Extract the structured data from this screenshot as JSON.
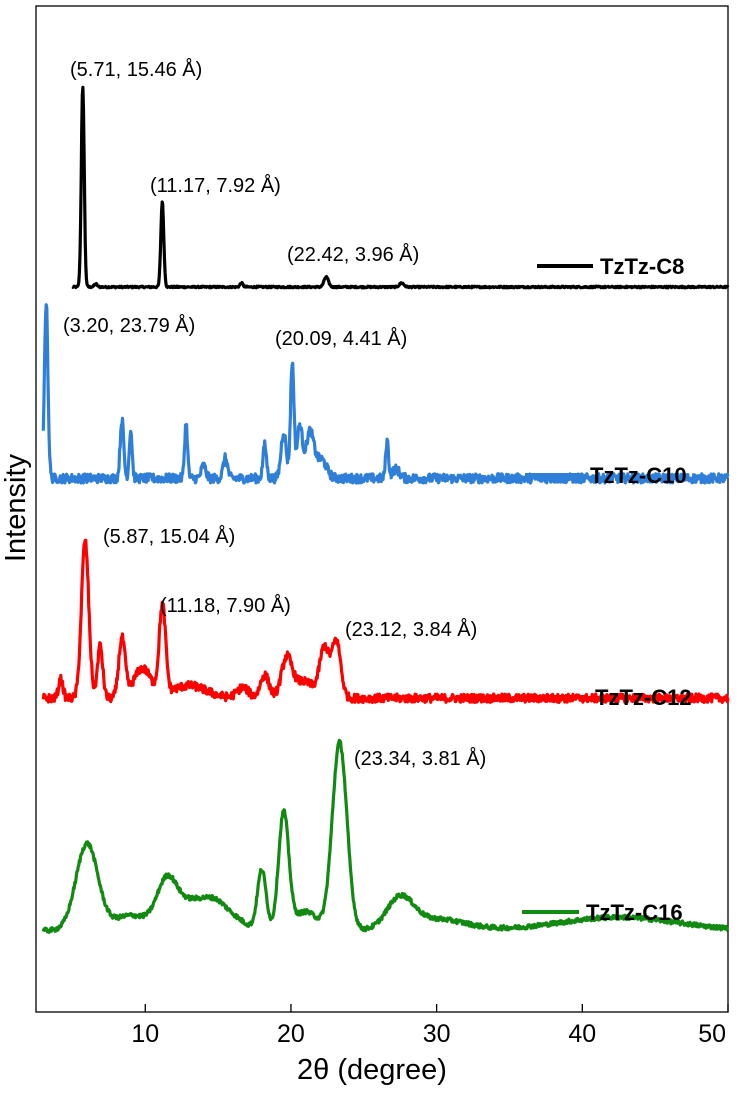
{
  "chart_data": {
    "type": "line",
    "title": "",
    "xlabel": "2θ (degree)",
    "ylabel": "Intensity",
    "xlim": [
      2.5,
      50
    ],
    "xticks": [
      10,
      20,
      30,
      40,
      50
    ],
    "y_ticks_shown": false,
    "legend_placement": "right of each trace",
    "series": [
      {
        "name": "TzTz-C8",
        "color": "#000000",
        "baseline": 0.02,
        "noise": 0.004,
        "peaks": [
          {
            "x": 5.71,
            "h": 1.0,
            "w": 0.1
          },
          {
            "x": 6.6,
            "h": 0.015,
            "w": 0.1
          },
          {
            "x": 11.17,
            "h": 0.43,
            "w": 0.1
          },
          {
            "x": 16.6,
            "h": 0.02,
            "w": 0.1
          },
          {
            "x": 22.42,
            "h": 0.05,
            "w": 0.15
          },
          {
            "x": 27.6,
            "h": 0.02,
            "w": 0.15
          }
        ]
      },
      {
        "name": "TzTz-C10",
        "color": "#2f7fd9",
        "baseline": 0.09,
        "noise": 0.025,
        "peaks": [
          {
            "x": 3.2,
            "h": 0.95,
            "w": 0.12
          },
          {
            "x": 8.4,
            "h": 0.32,
            "w": 0.12
          },
          {
            "x": 9.0,
            "h": 0.26,
            "w": 0.1
          },
          {
            "x": 12.8,
            "h": 0.3,
            "w": 0.1
          },
          {
            "x": 14.0,
            "h": 0.07,
            "w": 0.15
          },
          {
            "x": 15.5,
            "h": 0.11,
            "w": 0.15
          },
          {
            "x": 18.2,
            "h": 0.18,
            "w": 0.12
          },
          {
            "x": 19.5,
            "h": 0.25,
            "w": 0.18
          },
          {
            "x": 20.09,
            "h": 0.62,
            "w": 0.12
          },
          {
            "x": 20.6,
            "h": 0.28,
            "w": 0.18
          },
          {
            "x": 21.3,
            "h": 0.25,
            "w": 0.28
          },
          {
            "x": 22.1,
            "h": 0.1,
            "w": 0.35
          },
          {
            "x": 26.6,
            "h": 0.2,
            "w": 0.1
          },
          {
            "x": 27.2,
            "h": 0.05,
            "w": 0.25
          }
        ]
      },
      {
        "name": "TzTz-C12",
        "color": "#ff0000",
        "baseline": 0.08,
        "noise": 0.02,
        "peaks": [
          {
            "x": 4.2,
            "h": 0.09,
            "w": 0.15
          },
          {
            "x": 5.87,
            "h": 0.75,
            "w": 0.25
          },
          {
            "x": 6.9,
            "h": 0.25,
            "w": 0.18
          },
          {
            "x": 8.4,
            "h": 0.28,
            "w": 0.22
          },
          {
            "x": 9.8,
            "h": 0.14,
            "w": 0.6
          },
          {
            "x": 11.18,
            "h": 0.42,
            "w": 0.22
          },
          {
            "x": 13.0,
            "h": 0.06,
            "w": 1.2
          },
          {
            "x": 16.7,
            "h": 0.05,
            "w": 0.4
          },
          {
            "x": 18.2,
            "h": 0.11,
            "w": 0.3
          },
          {
            "x": 19.7,
            "h": 0.17,
            "w": 0.35
          },
          {
            "x": 20.8,
            "h": 0.08,
            "w": 0.8
          },
          {
            "x": 22.3,
            "h": 0.23,
            "w": 0.32
          },
          {
            "x": 23.12,
            "h": 0.27,
            "w": 0.3
          }
        ]
      },
      {
        "name": "TzTz-C16",
        "color": "#128a12",
        "baseline": 0.04,
        "noise": 0.012,
        "peaks": [
          {
            "x": 6.0,
            "h": 0.46,
            "w": 0.75
          },
          {
            "x": 9.0,
            "h": 0.08,
            "w": 1.2
          },
          {
            "x": 11.5,
            "h": 0.26,
            "w": 0.7
          },
          {
            "x": 13.2,
            "h": 0.14,
            "w": 0.9
          },
          {
            "x": 14.8,
            "h": 0.13,
            "w": 0.8
          },
          {
            "x": 16.2,
            "h": 0.05,
            "w": 0.8
          },
          {
            "x": 18.0,
            "h": 0.32,
            "w": 0.3
          },
          {
            "x": 19.5,
            "h": 0.62,
            "w": 0.35
          },
          {
            "x": 21.0,
            "h": 0.1,
            "w": 0.8
          },
          {
            "x": 23.34,
            "h": 1.0,
            "w": 0.5
          },
          {
            "x": 27.5,
            "h": 0.16,
            "w": 0.9
          },
          {
            "x": 30.0,
            "h": 0.06,
            "w": 2.0
          },
          {
            "x": 42.5,
            "h": 0.07,
            "w": 4.0
          }
        ]
      }
    ],
    "annotations": [
      {
        "series": "TzTz-C8",
        "text": "(5.71, 15.46 Å)"
      },
      {
        "series": "TzTz-C8",
        "text": "(11.17, 7.92 Å)"
      },
      {
        "series": "TzTz-C8",
        "text": "(22.42, 3.96 Å)"
      },
      {
        "series": "TzTz-C10",
        "text": "(3.20, 23.79 Å)"
      },
      {
        "series": "TzTz-C10",
        "text": "(20.09, 4.41 Å)"
      },
      {
        "series": "TzTz-C12",
        "text": "(5.87, 15.04 Å)"
      },
      {
        "series": "TzTz-C12",
        "text": "(11.18, 7.90 Å)"
      },
      {
        "series": "TzTz-C12",
        "text": "(23.12, 3.84 Å)"
      },
      {
        "series": "TzTz-C16",
        "text": "(23.34, 3.81 Å)"
      }
    ]
  }
}
